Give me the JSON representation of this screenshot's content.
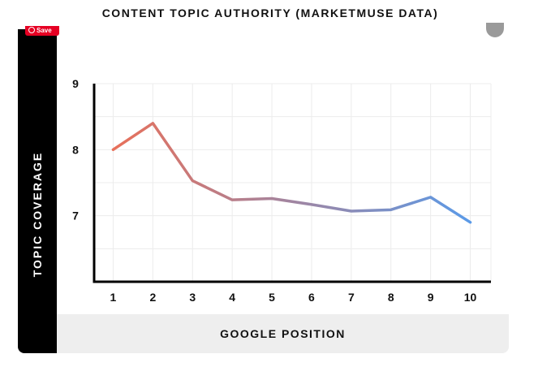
{
  "save_button": {
    "label": "Save"
  },
  "chart_data": {
    "type": "line",
    "title": "CONTENT TOPIC AUTHORITY (MARKETMUSE DATA)",
    "xlabel": "GOOGLE POSITION",
    "ylabel": "TOPIC COVERAGE",
    "x": [
      1,
      2,
      3,
      4,
      5,
      6,
      7,
      8,
      9,
      10
    ],
    "series": [
      {
        "values": [
          8.0,
          8.4,
          7.53,
          7.24,
          7.26,
          7.17,
          7.07,
          7.09,
          7.28,
          6.9
        ]
      }
    ],
    "xticks": [
      "1",
      "2",
      "3",
      "4",
      "5",
      "6",
      "7",
      "8",
      "9",
      "10"
    ],
    "yticks": [
      "9",
      "8",
      "7"
    ],
    "ylim": [
      6.0,
      9.0
    ],
    "xlim": [
      0.5,
      10.5
    ],
    "grid": true,
    "line_gradient": [
      "#e8705a",
      "#5a9ae8"
    ]
  }
}
